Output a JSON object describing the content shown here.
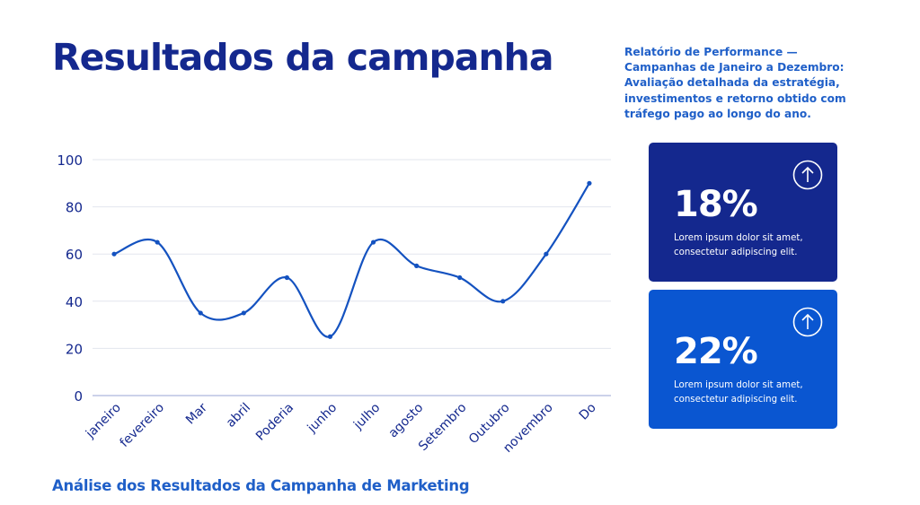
{
  "title": "Resultados da campanha",
  "subtitle": "Relatório de Performance — Campanhas de Janeiro a Dezembro: Avaliação detalhada da estratégia, investimentos e retorno obtido com tráfego pago ao longo do ano.",
  "footer": "Análise dos Resultados da Campanha de Marketing",
  "colors": {
    "title": "#14288e",
    "accent": "#1f5fc8",
    "line": "#1452c0",
    "card_dark": "#14288e",
    "card_bright": "#0a56d1"
  },
  "cards": [
    {
      "value": "18%",
      "text": "Lorem ipsum dolor sit amet, consectetur adipiscing elit.",
      "icon": "arrow-up-circle-icon"
    },
    {
      "value": "22%",
      "text": "Lorem ipsum dolor sit amet, consectetur adipiscing elit.",
      "icon": "arrow-up-circle-icon"
    }
  ],
  "chart_data": {
    "type": "line",
    "smooth": true,
    "markers": true,
    "categories": [
      "janeiro",
      "fevereiro",
      "Mar",
      "abril",
      "Poderia",
      "junho",
      "julho",
      "agosto",
      "Setembro",
      "Outubro",
      "novembro",
      "Do"
    ],
    "values": [
      60,
      65,
      35,
      35,
      50,
      25,
      65,
      55,
      50,
      40,
      60,
      90
    ],
    "yticks": [
      0,
      20,
      40,
      60,
      80,
      100
    ],
    "ylim": [
      0,
      100
    ],
    "grid": true,
    "legend": "none",
    "title": "",
    "xlabel": "",
    "ylabel": ""
  }
}
